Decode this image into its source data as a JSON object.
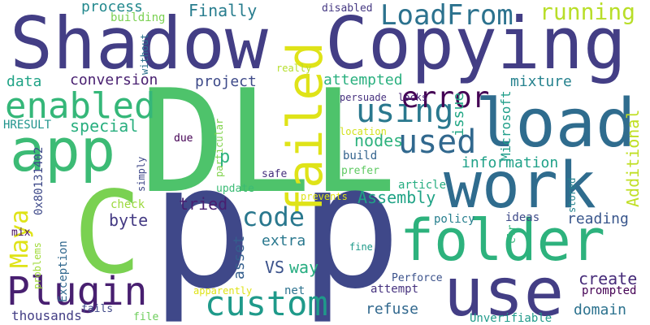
{
  "words": [
    {
      "text": "DLL",
      "color": "#4ec36b"
    },
    {
      "text": "p",
      "color": "#3f4889"
    },
    {
      "text": "p",
      "color": "#3f4889"
    },
    {
      "text": "Shadow",
      "color": "#433e85"
    },
    {
      "text": "Copying",
      "color": "#433e85"
    },
    {
      "text": "load",
      "color": "#2f6c8e"
    },
    {
      "text": "work",
      "color": "#2f6c8e"
    },
    {
      "text": "folder",
      "color": "#2db27d"
    },
    {
      "text": "use",
      "color": "#433e85"
    },
    {
      "text": "app",
      "color": "#3cbb75"
    },
    {
      "text": "failed",
      "color": "#dfe318"
    },
    {
      "text": "Plugin",
      "color": "#481f70"
    },
    {
      "text": "custom",
      "color": "#1f9a8a"
    },
    {
      "text": "enabled",
      "color": "#35b779"
    },
    {
      "text": "using",
      "color": "#2a788e"
    },
    {
      "text": "error",
      "color": "#440154"
    },
    {
      "text": "used",
      "color": "#31688e"
    },
    {
      "text": "LoadFrom",
      "color": "#2c728e"
    },
    {
      "text": "running",
      "color": "#b8de29"
    },
    {
      "text": "code",
      "color": "#2a788e"
    },
    {
      "text": "Maya",
      "color": "#dfe318"
    },
    {
      "text": "C",
      "color": "#7ad151"
    },
    {
      "text": "process",
      "color": "#23898e"
    },
    {
      "text": "Finally",
      "color": "#287d8e"
    },
    {
      "text": "conversion",
      "color": "#481f70"
    },
    {
      "text": "project",
      "color": "#3e4a89"
    },
    {
      "text": "data",
      "color": "#20a386"
    },
    {
      "text": "attempted",
      "color": "#2ab07f"
    },
    {
      "text": "mixture",
      "color": "#26828e"
    },
    {
      "text": "special",
      "color": "#29af7f"
    },
    {
      "text": "nodes",
      "color": "#2db27d"
    },
    {
      "text": "information",
      "color": "#1fa188"
    },
    {
      "text": "issue",
      "color": "#22a785"
    },
    {
      "text": "Microsoft",
      "color": "#1f9e89"
    },
    {
      "text": "Additional",
      "color": "#c0df25"
    },
    {
      "text": "byte",
      "color": "#443a83"
    },
    {
      "text": "tried",
      "color": "#481f70"
    },
    {
      "text": "Assembly",
      "color": "#20a386"
    },
    {
      "text": "reading",
      "color": "#39568c"
    },
    {
      "text": "extra",
      "color": "#2a788e"
    },
    {
      "text": "VS",
      "color": "#3b528b"
    },
    {
      "text": "way",
      "color": "#27ad81"
    },
    {
      "text": "create",
      "color": "#472c7a"
    },
    {
      "text": "domain",
      "color": "#2c728e"
    },
    {
      "text": "refuse",
      "color": "#31688e"
    },
    {
      "text": "asset",
      "color": "#355f8d"
    },
    {
      "text": "policy",
      "color": "#277f8e"
    },
    {
      "text": "ideas",
      "color": "#3e4a89"
    },
    {
      "text": "building",
      "color": "#7ad151"
    },
    {
      "text": "without",
      "color": "#2c728e"
    },
    {
      "text": "disabled",
      "color": "#453882"
    },
    {
      "text": "HRESULT",
      "color": "#1f948c"
    },
    {
      "text": "0x80131402",
      "color": "#3e4989"
    },
    {
      "text": "Exception",
      "color": "#31688e"
    },
    {
      "text": "problems",
      "color": "#a0da39"
    },
    {
      "text": "mix",
      "color": "#471063"
    },
    {
      "text": "really",
      "color": "#b5de2b"
    },
    {
      "text": "persuade",
      "color": "#46307e"
    },
    {
      "text": "locks",
      "color": "#482576"
    },
    {
      "text": "location",
      "color": "#d2e21b"
    },
    {
      "text": "particular",
      "color": "#81d34d"
    },
    {
      "text": "simply",
      "color": "#3f4889"
    },
    {
      "text": "due",
      "color": "#440154"
    },
    {
      "text": "safe",
      "color": "#46307e"
    },
    {
      "text": "build",
      "color": "#33638d"
    },
    {
      "text": "prefer",
      "color": "#5ec962"
    },
    {
      "text": "article",
      "color": "#26ad81"
    },
    {
      "text": "check",
      "color": "#9bd93c"
    },
    {
      "text": "update",
      "color": "#3bbb75"
    },
    {
      "text": "prevents",
      "color": "#dde318"
    },
    {
      "text": "stored",
      "color": "#26828e"
    },
    {
      "text": "clr",
      "color": "#32b67a"
    },
    {
      "text": "fine",
      "color": "#1f9a8a"
    },
    {
      "text": "Perforce",
      "color": "#3b528b"
    },
    {
      "text": "prompted",
      "color": "#440154"
    },
    {
      "text": "attempt",
      "color": "#46337f"
    },
    {
      "text": "net",
      "color": "#2c728e"
    },
    {
      "text": "apparently",
      "color": "#dfe318"
    },
    {
      "text": "thousands",
      "color": "#433e85"
    },
    {
      "text": "file",
      "color": "#6ccd5a"
    },
    {
      "text": "fails",
      "color": "#3f4788"
    },
    {
      "text": "Unverifiable",
      "color": "#1f9a8a"
    },
    {
      "text": "p",
      "color": "#2db27d"
    }
  ]
}
